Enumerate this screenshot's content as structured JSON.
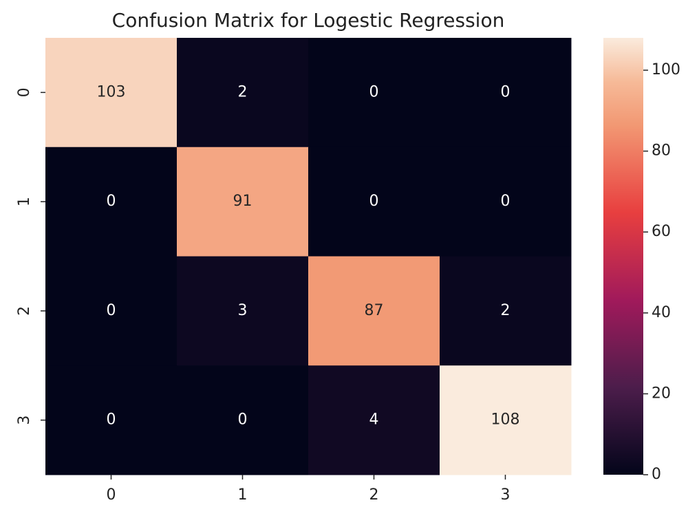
{
  "chart_data": {
    "type": "heatmap",
    "title": "Confusion Matrix for Logestic Regression",
    "x_categories": [
      "0",
      "1",
      "2",
      "3"
    ],
    "y_categories": [
      "0",
      "1",
      "2",
      "3"
    ],
    "values": [
      [
        103,
        2,
        0,
        0
      ],
      [
        0,
        91,
        0,
        0
      ],
      [
        0,
        3,
        87,
        2
      ],
      [
        0,
        0,
        4,
        108
      ]
    ],
    "colormap": "rocket",
    "clim": [
      0,
      108
    ],
    "cticks": [
      0,
      20,
      40,
      60,
      80,
      100
    ]
  }
}
